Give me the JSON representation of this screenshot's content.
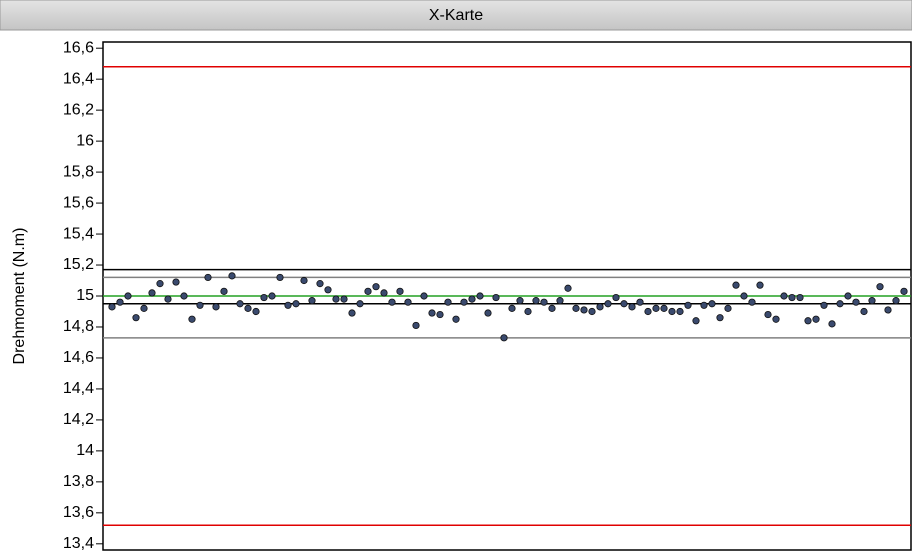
{
  "chart_data": {
    "type": "scatter",
    "title": "X-Karte",
    "y_label": "Drehmoment (N.m)",
    "ylim": [
      13.36,
      16.64
    ],
    "yticks": [
      {
        "value": 13.4,
        "label": "13,4"
      },
      {
        "value": 13.6,
        "label": "13,6"
      },
      {
        "value": 13.8,
        "label": "13,8"
      },
      14,
      {
        "value": 14.2,
        "label": "14,2"
      },
      {
        "value": 14.4,
        "label": "14,4"
      },
      {
        "value": 14.6,
        "label": "14,6"
      },
      {
        "value": 14.8,
        "label": "14,8"
      },
      15,
      {
        "value": 15.2,
        "label": "15,2"
      },
      {
        "value": 15.4,
        "label": "15,4"
      },
      {
        "value": 15.6,
        "label": "15,6"
      },
      {
        "value": 15.8,
        "label": "15,8"
      },
      16,
      {
        "value": 16.2,
        "label": "16,2"
      },
      {
        "value": 16.4,
        "label": "16,4"
      },
      {
        "value": 16.6,
        "label": "16,6"
      }
    ],
    "color": "#3a4a6e",
    "lines": [
      {
        "value": 16.48,
        "color": "#e00000"
      },
      {
        "value": 15.17,
        "color": "#000000"
      },
      {
        "value": 15.12,
        "color": "#808080"
      },
      {
        "value": 15.0,
        "color": "#22a022"
      },
      {
        "value": 14.95,
        "color": "#000000"
      },
      {
        "value": 14.73,
        "color": "#808080"
      },
      {
        "value": 13.52,
        "color": "#e00000"
      }
    ],
    "values": [
      14.93,
      14.96,
      15.0,
      14.86,
      14.92,
      15.02,
      15.08,
      14.98,
      15.09,
      15.0,
      14.85,
      14.94,
      15.12,
      14.93,
      15.03,
      15.13,
      14.95,
      14.92,
      14.9,
      14.99,
      15.0,
      15.12,
      14.94,
      14.95,
      15.1,
      14.97,
      15.08,
      15.04,
      14.98,
      14.98,
      14.89,
      14.95,
      15.03,
      15.06,
      15.02,
      14.96,
      15.03,
      14.96,
      14.81,
      15.0,
      14.89,
      14.88,
      14.96,
      14.85,
      14.96,
      14.98,
      15.0,
      14.89,
      14.99,
      14.73,
      14.92,
      14.97,
      14.9,
      14.97,
      14.96,
      14.92,
      14.97,
      15.05,
      14.92,
      14.91,
      14.9,
      14.93,
      14.95,
      14.99,
      14.95,
      14.93,
      14.96,
      14.9,
      14.92,
      14.92,
      14.9,
      14.9,
      14.94,
      14.84,
      14.94,
      14.95,
      14.86,
      14.92,
      15.07,
      15.0,
      14.96,
      15.07,
      14.88,
      14.85,
      15.0,
      14.99,
      14.99,
      14.84,
      14.85,
      14.94,
      14.82,
      14.95,
      15.0,
      14.96,
      14.9,
      14.97,
      15.06,
      14.91,
      14.97,
      15.03
    ]
  }
}
